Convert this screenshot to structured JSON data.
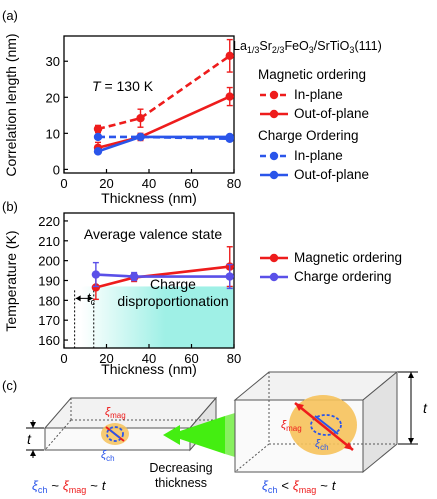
{
  "panel_labels": {
    "a": "(a)",
    "b": "(b)",
    "c": "(c)"
  },
  "material": {
    "title_parts": [
      {
        "text": "La",
        "sub": false
      },
      {
        "text": "1/3",
        "sub": true
      },
      {
        "text": "Sr",
        "sub": false
      },
      {
        "text": "2/3",
        "sub": true
      },
      {
        "text": "FeO",
        "sub": false
      },
      {
        "text": "3",
        "sub": true
      },
      {
        "text": "/SrTiO",
        "sub": false
      },
      {
        "text": "3",
        "sub": true
      },
      {
        "text": "(111)",
        "sub": false
      }
    ]
  },
  "chart_data": [
    {
      "type": "line",
      "xlabel": "Thickness (nm)",
      "ylabel": "Correlation length (nm)",
      "xlim": [
        0,
        80
      ],
      "ylim": [
        -1,
        37
      ],
      "xticks": [
        0,
        20,
        40,
        60,
        80
      ],
      "yticks": [
        0,
        10,
        20,
        30
      ],
      "annotation": {
        "symbol": "T",
        "rest": " = 130 K"
      },
      "legend_groups": [
        {
          "title": "Magnetic ordering",
          "series": [
            0,
            1
          ]
        },
        {
          "title": "Charge Ordering",
          "series": [
            2,
            3
          ]
        }
      ],
      "series": [
        {
          "name": "In-plane",
          "color": "#ee1c1c",
          "dashed": true,
          "x": [
            16,
            36,
            78
          ],
          "y": [
            11.2,
            14.2,
            31.5
          ],
          "err": [
            1.0,
            2.5,
            4.5
          ]
        },
        {
          "name": "Out-of-plane",
          "color": "#ee1c1c",
          "dashed": false,
          "x": [
            16,
            36,
            78
          ],
          "y": [
            6.0,
            9.0,
            20.2
          ],
          "err": [
            1.5,
            1.0,
            2.5
          ]
        },
        {
          "name": "In-plane",
          "color": "#2a55ea",
          "dashed": true,
          "x": [
            16,
            36,
            78
          ],
          "y": [
            9.0,
            9.0,
            8.5
          ],
          "err": [
            0.6,
            0.4,
            0.6
          ]
        },
        {
          "name": "Out-of-plane",
          "color": "#2a55ea",
          "dashed": false,
          "x": [
            16,
            36,
            78
          ],
          "y": [
            5.0,
            9.0,
            9.0
          ],
          "err": [
            0.6,
            0.5,
            0.6
          ]
        }
      ]
    },
    {
      "type": "line",
      "xlabel": "Thickness (nm)",
      "ylabel": "Temperature (K)",
      "xlim": [
        0,
        80
      ],
      "ylim": [
        156,
        224
      ],
      "xticks": [
        0,
        20,
        40,
        60,
        80
      ],
      "yticks": [
        160,
        170,
        180,
        190,
        200,
        210,
        220
      ],
      "region_label_top": "Average valence state",
      "region_label_bottom": [
        "Charge",
        "disproportionation"
      ],
      "tc_label": {
        "symbol": "t",
        "sub": "c"
      },
      "tc_x": 14,
      "shade_color": "#9ff0e6",
      "series": [
        {
          "name": "Magnetic ordering",
          "color": "#ee1c1c",
          "x": [
            15,
            33,
            78
          ],
          "y": [
            186.5,
            191.5,
            197
          ],
          "err": [
            6,
            2,
            10
          ]
        },
        {
          "name": "Charge ordering",
          "color": "#5a50e8",
          "x": [
            15,
            33,
            78
          ],
          "y": [
            193,
            192,
            192
          ],
          "err": [
            6,
            2,
            6
          ]
        }
      ]
    }
  ],
  "schematic": {
    "xi": "ξ",
    "mag_sub": "mag",
    "ch_sub": "ch",
    "t": "t",
    "tilde": "~",
    "less": "<",
    "arrow_label": [
      "Decreasing",
      "thickness"
    ],
    "colors": {
      "mag": "#ee1c1c",
      "ch": "#2a55ea",
      "blob": "#f6c25b",
      "arrow": "#44ee11"
    }
  }
}
